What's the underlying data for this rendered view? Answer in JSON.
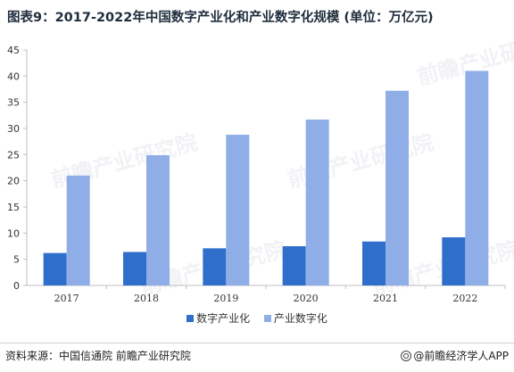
{
  "title": "图表9：2017-2022年中国数字产业化和产业数字化规模 (单位：万亿元)",
  "source": "资料来源：中国信通院 前瞻产业研究院",
  "brand": "@前瞻经济学人APP",
  "watermark": "前瞻产业研究院",
  "colors": {
    "series1": "#2f6fcb",
    "series2": "#8faee8",
    "axis": "#bfbfbf",
    "text": "#333333"
  },
  "chart_data": {
    "type": "bar",
    "title": "图表9：2017-2022年中国数字产业化和产业数字化规模 (单位：万亿元)",
    "xlabel": "",
    "ylabel": "",
    "categories": [
      "2017",
      "2018",
      "2019",
      "2020",
      "2021",
      "2022"
    ],
    "series": [
      {
        "name": "数字产业化",
        "values": [
          6.2,
          6.4,
          7.1,
          7.5,
          8.4,
          9.2
        ]
      },
      {
        "name": "产业数字化",
        "values": [
          21.0,
          24.9,
          28.8,
          31.7,
          37.2,
          41.0
        ]
      }
    ],
    "ylim": [
      0,
      45
    ],
    "yticks": [
      0,
      5,
      10,
      15,
      20,
      25,
      30,
      35,
      40,
      45
    ],
    "grid": false,
    "legend": "bottom-center"
  }
}
